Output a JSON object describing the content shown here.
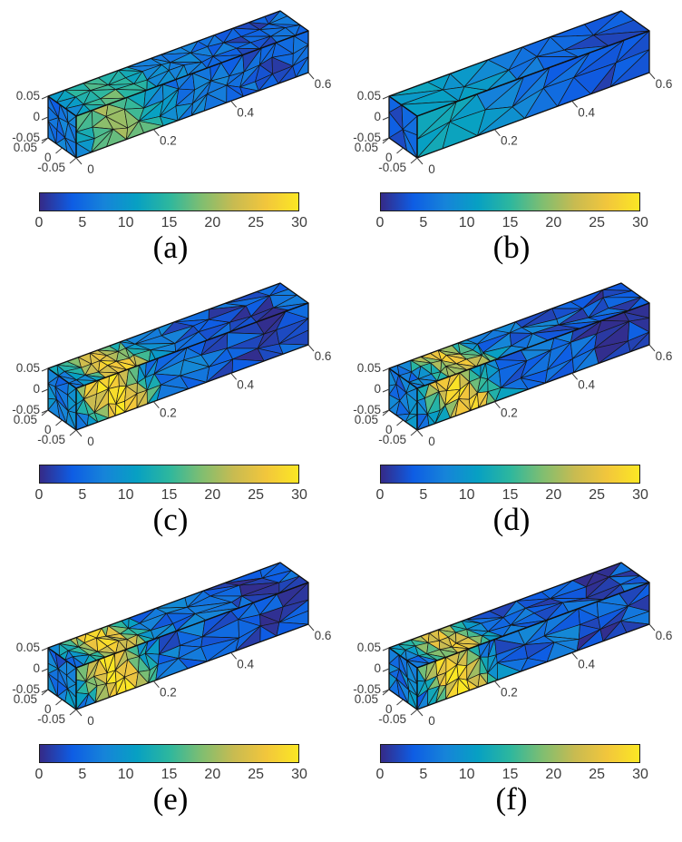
{
  "figure": {
    "background": "#ffffff",
    "axes": {
      "x_tick_labels": [
        "0",
        "0.2",
        "0.4",
        "0.6"
      ],
      "x_tick_values": [
        0,
        0.2,
        0.4,
        0.6
      ],
      "z_tick_labels": [
        "0.05",
        "0",
        "-0.05"
      ],
      "y_tick_labels": [
        "0.05",
        "0",
        "-0.05"
      ],
      "tick_color": "#3d3d3d"
    },
    "colorbar": {
      "min": 0,
      "max": 30,
      "tick_labels": [
        "0",
        "5",
        "10",
        "15",
        "20",
        "25",
        "30"
      ]
    },
    "colormap_stops": [
      [
        0,
        "#352a87"
      ],
      [
        0.125,
        "#0e5de4"
      ],
      [
        0.25,
        "#1684d9"
      ],
      [
        0.375,
        "#07a0c3"
      ],
      [
        0.5,
        "#2db79e"
      ],
      [
        0.625,
        "#7fbe71"
      ],
      [
        0.75,
        "#c8bb51"
      ],
      [
        0.875,
        "#f2c63c"
      ],
      [
        1,
        "#fbe724"
      ]
    ],
    "edge_color": "#161616",
    "subplots": [
      {
        "caption": "(a)",
        "seed": 7,
        "segments": [
          [
            0,
            0.6,
            14
          ]
        ],
        "rows": 3,
        "endN": 3,
        "field": {
          "base": 6,
          "amp": 13,
          "xc": 0.1,
          "w": 0.075,
          "noise": 2.2,
          "dip": 3,
          "endBase": 6.5,
          "endDip": 4,
          "endBottom": 1.5,
          "endVar": 1.5
        }
      },
      {
        "caption": "(b)",
        "seed": 19,
        "segments": [
          [
            0,
            0.6,
            7
          ]
        ],
        "rows": 2,
        "endN": 2,
        "field": {
          "base": 4.5,
          "amp": 8,
          "xc": 0.07,
          "w": 0.13,
          "noise": 1.2,
          "dip": 2,
          "endBase": 5,
          "endDip": 3.5,
          "endBottom": 1,
          "endVar": 1
        }
      },
      {
        "caption": "(c)",
        "seed": 31,
        "segments": [
          [
            0,
            0.21,
            8
          ],
          [
            0.21,
            0.6,
            6
          ]
        ],
        "rows": 3,
        "endN": 3,
        "field": {
          "base": 5,
          "amp": 25,
          "xc": 0.1,
          "w": 0.055,
          "noise": 3.2,
          "dip": 3.5,
          "endBase": 7.5,
          "endDip": 6,
          "endBottom": 2.5,
          "endVar": 1.5
        }
      },
      {
        "caption": "(d)",
        "seed": 43,
        "segments": [
          [
            0,
            0.21,
            8
          ],
          [
            0.21,
            0.6,
            6
          ]
        ],
        "rows": 3,
        "endN": 3,
        "field": {
          "base": 5,
          "amp": 23,
          "xc": 0.11,
          "w": 0.05,
          "noise": 3.2,
          "dip": 3.5,
          "endBase": 7.5,
          "endDip": 6,
          "endBottom": 2.5,
          "endVar": 1.5
        }
      },
      {
        "caption": "(e)",
        "seed": 57,
        "segments": [
          [
            0,
            0.21,
            8
          ],
          [
            0.21,
            0.6,
            6
          ]
        ],
        "rows": 3,
        "endN": 3,
        "field": {
          "base": 5,
          "amp": 25,
          "xc": 0.1,
          "w": 0.055,
          "noise": 3.4,
          "dip": 3.5,
          "endBase": 7.5,
          "endDip": 6,
          "endBottom": 2.5,
          "endVar": 1.5
        }
      },
      {
        "caption": "(f)",
        "seed": 71,
        "segments": [
          [
            0,
            0.21,
            8
          ],
          [
            0.21,
            0.6,
            6
          ]
        ],
        "rows": 3,
        "endN": 3,
        "field": {
          "base": 5,
          "amp": 24,
          "xc": 0.1,
          "w": 0.05,
          "noise": 3.4,
          "dip": 3.5,
          "endBase": 7.5,
          "endDip": 6,
          "endBottom": 2.5,
          "endVar": 1.5
        }
      }
    ]
  },
  "chart_data": [
    {
      "type": "heatmap",
      "subplot": "(a)",
      "description": "3D triangulated mesh of a rectangular beam colored by field value; fine uniform mesh, green-yellow patch (~18-21) near x=0.1, blue (~4-6) elsewhere, darker blue (~3) near x=0.5",
      "x_range": [
        0,
        0.6
      ],
      "y_range": [
        -0.05,
        0.05
      ],
      "z_range": [
        -0.05,
        0.05
      ],
      "x_ticks": [
        0,
        0.2,
        0.4,
        0.6
      ],
      "y_ticks": [
        0.05,
        0,
        -0.05
      ],
      "z_ticks": [
        0.05,
        0,
        -0.05
      ],
      "colorbar": {
        "min": 0,
        "max": 30,
        "ticks": [
          0,
          5,
          10,
          15,
          20,
          25,
          30
        ],
        "colormap": "parula"
      },
      "mesh": "fine uniform",
      "peak_value": 20,
      "peak_x": 0.1,
      "background_value": 5
    },
    {
      "type": "heatmap",
      "subplot": "(b)",
      "description": "Coarse initial mesh; smooth field, teal maximum (~12-13) near fixed end, blue (~4) toward free end",
      "x_range": [
        0,
        0.6
      ],
      "y_range": [
        -0.05,
        0.05
      ],
      "z_range": [
        -0.05,
        0.05
      ],
      "x_ticks": [
        0,
        0.2,
        0.4,
        0.6
      ],
      "y_ticks": [
        0.05,
        0,
        -0.05
      ],
      "z_ticks": [
        0.05,
        0,
        -0.05
      ],
      "colorbar": {
        "min": 0,
        "max": 30,
        "ticks": [
          0,
          5,
          10,
          15,
          20,
          25,
          30
        ],
        "colormap": "parula"
      },
      "mesh": "coarse uniform",
      "peak_value": 13,
      "peak_x": 0.08,
      "background_value": 4
    },
    {
      "type": "heatmap",
      "subplot": "(c)",
      "description": "Mesh locally refined for x<0.2; bright yellow diagonal bands (~28-30) around x=0.1, dark indigo strip on end face, dark blue (~2-3) near x=0.5",
      "x_range": [
        0,
        0.6
      ],
      "y_range": [
        -0.05,
        0.05
      ],
      "z_range": [
        -0.05,
        0.05
      ],
      "x_ticks": [
        0,
        0.2,
        0.4,
        0.6
      ],
      "y_ticks": [
        0.05,
        0,
        -0.05
      ],
      "z_ticks": [
        0.05,
        0,
        -0.05
      ],
      "colorbar": {
        "min": 0,
        "max": 30,
        "ticks": [
          0,
          5,
          10,
          15,
          20,
          25,
          30
        ],
        "colormap": "parula"
      },
      "mesh": "refined near x<0.2",
      "peak_value": 30,
      "peak_x": 0.1,
      "background_value": 5
    },
    {
      "type": "heatmap",
      "subplot": "(d)",
      "description": "Mesh locally refined for x<0.2; yellow-orange band (~27-30) around x=0.11, otherwise like (c) with slightly smaller hot region",
      "x_range": [
        0,
        0.6
      ],
      "y_range": [
        -0.05,
        0.05
      ],
      "z_range": [
        -0.05,
        0.05
      ],
      "x_ticks": [
        0,
        0.2,
        0.4,
        0.6
      ],
      "y_ticks": [
        0.05,
        0,
        -0.05
      ],
      "z_ticks": [
        0.05,
        0,
        -0.05
      ],
      "colorbar": {
        "min": 0,
        "max": 30,
        "ticks": [
          0,
          5,
          10,
          15,
          20,
          25,
          30
        ],
        "colormap": "parula"
      },
      "mesh": "refined near x<0.2",
      "peak_value": 30,
      "peak_x": 0.11,
      "background_value": 5
    },
    {
      "type": "heatmap",
      "subplot": "(e)",
      "description": "Mesh locally refined for x<0.2; yellow bands (~28-30) around x=0.1, visually similar to (c)",
      "x_range": [
        0,
        0.6
      ],
      "y_range": [
        -0.05,
        0.05
      ],
      "z_range": [
        -0.05,
        0.05
      ],
      "x_ticks": [
        0,
        0.2,
        0.4,
        0.6
      ],
      "y_ticks": [
        0.05,
        0,
        -0.05
      ],
      "z_ticks": [
        0.05,
        0,
        -0.05
      ],
      "colorbar": {
        "min": 0,
        "max": 30,
        "ticks": [
          0,
          5,
          10,
          15,
          20,
          25,
          30
        ],
        "colormap": "parula"
      },
      "mesh": "refined near x<0.2",
      "peak_value": 30,
      "peak_x": 0.1,
      "background_value": 5
    },
    {
      "type": "heatmap",
      "subplot": "(f)",
      "description": "Mesh locally refined for x<0.2; yellow-orange bands (~27-30) around x=0.1, visually similar to (d)",
      "x_range": [
        0,
        0.6
      ],
      "y_range": [
        -0.05,
        0.05
      ],
      "z_range": [
        -0.05,
        0.05
      ],
      "x_ticks": [
        0,
        0.2,
        0.4,
        0.6
      ],
      "y_ticks": [
        0.05,
        0,
        -0.05
      ],
      "z_ticks": [
        0.05,
        0,
        -0.05
      ],
      "colorbar": {
        "min": 0,
        "max": 30,
        "ticks": [
          0,
          5,
          10,
          15,
          20,
          25,
          30
        ],
        "colormap": "parula"
      },
      "mesh": "refined near x<0.2",
      "peak_value": 30,
      "peak_x": 0.1,
      "background_value": 5
    }
  ]
}
